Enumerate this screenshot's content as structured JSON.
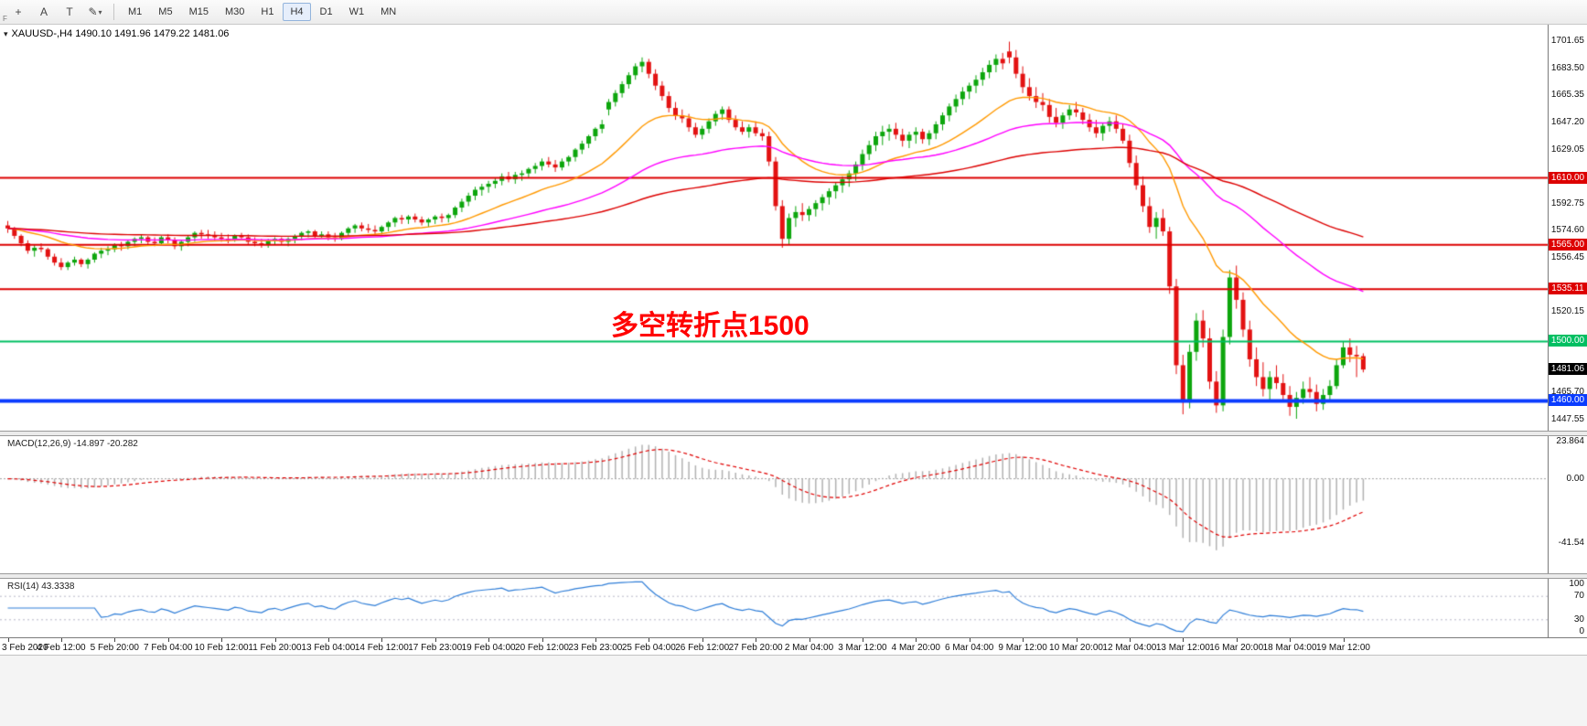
{
  "toolbar": {
    "side_label": "F",
    "tools": [
      {
        "name": "crosshair-icon",
        "glyph": "+"
      },
      {
        "name": "text-tool-icon",
        "glyph": "A"
      },
      {
        "name": "text-label-tool-icon",
        "glyph": "T"
      },
      {
        "name": "draw-tool-icon",
        "glyph": "✎",
        "caret": true
      }
    ],
    "timeframes": [
      "M1",
      "M5",
      "M15",
      "M30",
      "H1",
      "H4",
      "D1",
      "W1",
      "MN"
    ],
    "active_timeframe": "H4"
  },
  "chart": {
    "title_marker": "▾",
    "title": "XAUUSD-,H4  1490.10 1491.96 1479.22 1481.06",
    "symbol": "XAUUSD-",
    "period": "H4",
    "ohlc_display": {
      "open": "1490.10",
      "high": "1491.96",
      "low": "1479.22",
      "close": "1481.06"
    },
    "annotation": {
      "text": "多空转折点1500",
      "color": "#ff0000"
    },
    "price_axis_labels": [
      "1701.65",
      "1683.50",
      "1665.35",
      "1647.20",
      "1629.05",
      "1592.75",
      "1574.60",
      "1556.45",
      "1520.15",
      "1465.70",
      "1447.55"
    ],
    "hlines": [
      {
        "price": 1610.0,
        "label": "1610.00",
        "color": "#dd0000",
        "width": 2
      },
      {
        "price": 1565.0,
        "label": "1565.00",
        "color": "#dd0000",
        "width": 2
      },
      {
        "price": 1535.11,
        "label": "1535.11",
        "color": "#dd0000",
        "width": 2
      },
      {
        "price": 1500.0,
        "label": "1500.00",
        "color": "#00bf62",
        "width": 2
      },
      {
        "price": 1460.0,
        "label": "1460.00",
        "color": "#0a3cff",
        "width": 4
      }
    ],
    "current_price": {
      "label": "1481.06",
      "price": 1481.06,
      "bg": "#000000",
      "fg": "#ffffff"
    },
    "colors": {
      "bull": "#0da60d",
      "bear": "#e31212",
      "ma_fast": "#ff9900",
      "ma_mid": "#ff00ff",
      "ma_slow": "#dd0000"
    }
  },
  "chart_data": {
    "type": "candlestick",
    "symbol": "XAUUSD-",
    "timeframe": "H4",
    "price_range": {
      "max": 1713,
      "min": 1440
    },
    "label_every_n_bars": 8,
    "time_labels": [
      "3 Feb 2020",
      "4 Feb 12:00",
      "5 Feb 20:00",
      "7 Feb 04:00",
      "10 Feb 12:00",
      "11 Feb 20:00",
      "13 Feb 04:00",
      "14 Feb 12:00",
      "17 Feb 23:00",
      "19 Feb 04:00",
      "20 Feb 12:00",
      "23 Feb 23:00",
      "25 Feb 04:00",
      "26 Feb 12:00",
      "27 Feb 20:00",
      "2 Mar 04:00",
      "3 Mar 12:00",
      "4 Mar 20:00",
      "6 Mar 04:00",
      "9 Mar 12:00",
      "10 Mar 20:00",
      "12 Mar 04:00",
      "13 Mar 12:00",
      "16 Mar 20:00",
      "18 Mar 04:00",
      "19 Mar 12:00"
    ],
    "moving_averages": [
      {
        "period": 21,
        "color": "#ff9900"
      },
      {
        "period": 55,
        "color": "#ff00ff"
      },
      {
        "period": 120,
        "color": "#dd0000"
      }
    ],
    "ohlc": [
      [
        1578,
        1581,
        1573,
        1576
      ],
      [
        1576,
        1577,
        1569,
        1571
      ],
      [
        1571,
        1572,
        1564,
        1566
      ],
      [
        1566,
        1568,
        1559,
        1561
      ],
      [
        1561,
        1565,
        1557,
        1563
      ],
      [
        1563,
        1566,
        1560,
        1562
      ],
      [
        1562,
        1563,
        1555,
        1557
      ],
      [
        1557,
        1559,
        1551,
        1553
      ],
      [
        1553,
        1556,
        1548,
        1550
      ],
      [
        1550,
        1554,
        1548,
        1553
      ],
      [
        1553,
        1557,
        1551,
        1555
      ],
      [
        1555,
        1556,
        1550,
        1552
      ],
      [
        1552,
        1556,
        1549,
        1555
      ],
      [
        1555,
        1560,
        1553,
        1559
      ],
      [
        1559,
        1563,
        1556,
        1561
      ],
      [
        1561,
        1564,
        1558,
        1562
      ],
      [
        1562,
        1566,
        1560,
        1565
      ],
      [
        1565,
        1567,
        1561,
        1564
      ],
      [
        1564,
        1568,
        1562,
        1567
      ],
      [
        1567,
        1570,
        1564,
        1569
      ],
      [
        1569,
        1572,
        1566,
        1570
      ],
      [
        1570,
        1571,
        1565,
        1567
      ],
      [
        1567,
        1570,
        1564,
        1566
      ],
      [
        1566,
        1571,
        1565,
        1570
      ],
      [
        1570,
        1572,
        1566,
        1568
      ],
      [
        1568,
        1570,
        1562,
        1564
      ],
      [
        1564,
        1568,
        1561,
        1567
      ],
      [
        1567,
        1571,
        1564,
        1570
      ],
      [
        1570,
        1574,
        1567,
        1573
      ],
      [
        1573,
        1575,
        1569,
        1572
      ],
      [
        1572,
        1575,
        1569,
        1571
      ],
      [
        1571,
        1574,
        1568,
        1570
      ],
      [
        1570,
        1573,
        1567,
        1569
      ],
      [
        1569,
        1572,
        1566,
        1568
      ],
      [
        1568,
        1572,
        1567,
        1571
      ],
      [
        1571,
        1573,
        1568,
        1570
      ],
      [
        1570,
        1572,
        1565,
        1567
      ],
      [
        1567,
        1570,
        1564,
        1566
      ],
      [
        1566,
        1569,
        1563,
        1565
      ],
      [
        1565,
        1569,
        1563,
        1568
      ],
      [
        1568,
        1570,
        1565,
        1569
      ],
      [
        1569,
        1570,
        1565,
        1567
      ],
      [
        1567,
        1570,
        1564,
        1569
      ],
      [
        1569,
        1572,
        1566,
        1571
      ],
      [
        1571,
        1574,
        1568,
        1573
      ],
      [
        1573,
        1575,
        1570,
        1574
      ],
      [
        1574,
        1575,
        1569,
        1571
      ],
      [
        1571,
        1574,
        1569,
        1572
      ],
      [
        1572,
        1574,
        1568,
        1570
      ],
      [
        1570,
        1573,
        1567,
        1569
      ],
      [
        1569,
        1574,
        1568,
        1573
      ],
      [
        1573,
        1577,
        1571,
        1576
      ],
      [
        1576,
        1579,
        1573,
        1578
      ],
      [
        1578,
        1580,
        1574,
        1576
      ],
      [
        1576,
        1579,
        1573,
        1575
      ],
      [
        1575,
        1578,
        1572,
        1574
      ],
      [
        1574,
        1578,
        1572,
        1577
      ],
      [
        1577,
        1581,
        1574,
        1580
      ],
      [
        1580,
        1584,
        1577,
        1583
      ],
      [
        1583,
        1585,
        1579,
        1582
      ],
      [
        1582,
        1585,
        1579,
        1584
      ],
      [
        1584,
        1586,
        1580,
        1582
      ],
      [
        1582,
        1584,
        1578,
        1580
      ],
      [
        1580,
        1583,
        1577,
        1582
      ],
      [
        1582,
        1585,
        1579,
        1584
      ],
      [
        1584,
        1586,
        1580,
        1583
      ],
      [
        1583,
        1586,
        1580,
        1585
      ],
      [
        1585,
        1591,
        1583,
        1590
      ],
      [
        1590,
        1596,
        1587,
        1594
      ],
      [
        1594,
        1600,
        1591,
        1598
      ],
      [
        1598,
        1604,
        1595,
        1602
      ],
      [
        1602,
        1606,
        1598,
        1604
      ],
      [
        1604,
        1608,
        1600,
        1606
      ],
      [
        1606,
        1610,
        1603,
        1608
      ],
      [
        1608,
        1613,
        1605,
        1611
      ],
      [
        1611,
        1614,
        1607,
        1609
      ],
      [
        1609,
        1614,
        1606,
        1612
      ],
      [
        1612,
        1615,
        1608,
        1613
      ],
      [
        1613,
        1617,
        1610,
        1616
      ],
      [
        1616,
        1620,
        1613,
        1618
      ],
      [
        1618,
        1623,
        1615,
        1621
      ],
      [
        1621,
        1624,
        1617,
        1619
      ],
      [
        1619,
        1622,
        1614,
        1617
      ],
      [
        1617,
        1623,
        1615,
        1621
      ],
      [
        1621,
        1625,
        1618,
        1624
      ],
      [
        1624,
        1630,
        1621,
        1629
      ],
      [
        1629,
        1635,
        1626,
        1633
      ],
      [
        1633,
        1639,
        1630,
        1638
      ],
      [
        1638,
        1644,
        1635,
        1643
      ],
      [
        1643,
        1649,
        1640,
        1646
      ],
      [
        1656,
        1663,
        1652,
        1661
      ],
      [
        1661,
        1669,
        1658,
        1667
      ],
      [
        1667,
        1675,
        1664,
        1673
      ],
      [
        1673,
        1681,
        1670,
        1679
      ],
      [
        1679,
        1687,
        1676,
        1685
      ],
      [
        1685,
        1691,
        1681,
        1688
      ],
      [
        1688,
        1690,
        1677,
        1680
      ],
      [
        1680,
        1683,
        1669,
        1672
      ],
      [
        1672,
        1675,
        1662,
        1665
      ],
      [
        1665,
        1668,
        1654,
        1657
      ],
      [
        1657,
        1661,
        1649,
        1652
      ],
      [
        1652,
        1656,
        1647,
        1650
      ],
      [
        1650,
        1653,
        1641,
        1644
      ],
      [
        1644,
        1647,
        1637,
        1639
      ],
      [
        1639,
        1645,
        1636,
        1643
      ],
      [
        1643,
        1650,
        1640,
        1648
      ],
      [
        1648,
        1655,
        1645,
        1653
      ],
      [
        1653,
        1658,
        1649,
        1656
      ],
      [
        1656,
        1658,
        1647,
        1649
      ],
      [
        1649,
        1652,
        1642,
        1644
      ],
      [
        1644,
        1648,
        1639,
        1641
      ],
      [
        1641,
        1646,
        1637,
        1644
      ],
      [
        1644,
        1648,
        1638,
        1640
      ],
      [
        1640,
        1643,
        1635,
        1638
      ],
      [
        1638,
        1641,
        1618,
        1621
      ],
      [
        1621,
        1624,
        1588,
        1591
      ],
      [
        1591,
        1595,
        1563,
        1569
      ],
      [
        1569,
        1586,
        1565,
        1583
      ],
      [
        1583,
        1591,
        1577,
        1587
      ],
      [
        1587,
        1593,
        1581,
        1585
      ],
      [
        1585,
        1591,
        1581,
        1589
      ],
      [
        1589,
        1595,
        1584,
        1593
      ],
      [
        1593,
        1599,
        1588,
        1597
      ],
      [
        1597,
        1603,
        1592,
        1601
      ],
      [
        1601,
        1607,
        1596,
        1605
      ],
      [
        1605,
        1611,
        1600,
        1609
      ],
      [
        1609,
        1615,
        1604,
        1613
      ],
      [
        1613,
        1621,
        1608,
        1619
      ],
      [
        1619,
        1629,
        1615,
        1626
      ],
      [
        1626,
        1635,
        1622,
        1632
      ],
      [
        1632,
        1641,
        1628,
        1638
      ],
      [
        1638,
        1645,
        1632,
        1641
      ],
      [
        1641,
        1646,
        1635,
        1643
      ],
      [
        1643,
        1647,
        1636,
        1639
      ],
      [
        1639,
        1643,
        1631,
        1635
      ],
      [
        1635,
        1641,
        1630,
        1639
      ],
      [
        1639,
        1644,
        1633,
        1641
      ],
      [
        1641,
        1643,
        1633,
        1636
      ],
      [
        1636,
        1642,
        1632,
        1640
      ],
      [
        1640,
        1648,
        1636,
        1646
      ],
      [
        1646,
        1654,
        1642,
        1652
      ],
      [
        1652,
        1660,
        1648,
        1658
      ],
      [
        1658,
        1666,
        1654,
        1663
      ],
      [
        1663,
        1671,
        1659,
        1668
      ],
      [
        1668,
        1674,
        1663,
        1672
      ],
      [
        1672,
        1679,
        1667,
        1676
      ],
      [
        1676,
        1684,
        1672,
        1681
      ],
      [
        1681,
        1689,
        1677,
        1686
      ],
      [
        1686,
        1693,
        1681,
        1690
      ],
      [
        1690,
        1694,
        1683,
        1687
      ],
      [
        1695,
        1701.6,
        1687,
        1691
      ],
      [
        1691,
        1696,
        1677,
        1680
      ],
      [
        1680,
        1685,
        1667,
        1671
      ],
      [
        1671,
        1677,
        1662,
        1665
      ],
      [
        1665,
        1671,
        1657,
        1661
      ],
      [
        1661,
        1667,
        1655,
        1659
      ],
      [
        1659,
        1663,
        1647,
        1651
      ],
      [
        1651,
        1657,
        1644,
        1647
      ],
      [
        1647,
        1654,
        1643,
        1652
      ],
      [
        1652,
        1659,
        1649,
        1656
      ],
      [
        1656,
        1661,
        1651,
        1654
      ],
      [
        1654,
        1657,
        1646,
        1649
      ],
      [
        1649,
        1653,
        1641,
        1644
      ],
      [
        1644,
        1649,
        1637,
        1640
      ],
      [
        1640,
        1647,
        1635,
        1645
      ],
      [
        1645,
        1651,
        1641,
        1648
      ],
      [
        1648,
        1652,
        1640,
        1643
      ],
      [
        1643,
        1646,
        1633,
        1635
      ],
      [
        1635,
        1639,
        1617,
        1620
      ],
      [
        1620,
        1625,
        1602,
        1605
      ],
      [
        1605,
        1611,
        1587,
        1591
      ],
      [
        1591,
        1597,
        1573,
        1577
      ],
      [
        1577,
        1587,
        1569,
        1583
      ],
      [
        1583,
        1589,
        1571,
        1574
      ],
      [
        1574,
        1577,
        1532,
        1537
      ],
      [
        1537,
        1542,
        1478,
        1484
      ],
      [
        1484,
        1491,
        1451,
        1459
      ],
      [
        1459,
        1498,
        1455,
        1493
      ],
      [
        1493,
        1519,
        1487,
        1514
      ],
      [
        1514,
        1521,
        1496,
        1502
      ],
      [
        1502,
        1509,
        1468,
        1473
      ],
      [
        1473,
        1480,
        1452,
        1457
      ],
      [
        1457,
        1508,
        1453,
        1503
      ],
      [
        1503,
        1548,
        1498,
        1543
      ],
      [
        1543,
        1551,
        1522,
        1528
      ],
      [
        1528,
        1533,
        1503,
        1508
      ],
      [
        1508,
        1514,
        1483,
        1488
      ],
      [
        1488,
        1496,
        1470,
        1476
      ],
      [
        1476,
        1486,
        1463,
        1468
      ],
      [
        1468,
        1480,
        1460,
        1476
      ],
      [
        1476,
        1484,
        1468,
        1472
      ],
      [
        1472,
        1478,
        1460,
        1464
      ],
      [
        1464,
        1470,
        1450,
        1456
      ],
      [
        1456,
        1466,
        1448,
        1462
      ],
      [
        1462,
        1473,
        1458,
        1468
      ],
      [
        1468,
        1476,
        1462,
        1466
      ],
      [
        1466,
        1471,
        1453,
        1458
      ],
      [
        1458,
        1468,
        1454,
        1464
      ],
      [
        1464,
        1474,
        1460,
        1470
      ],
      [
        1470,
        1488,
        1468,
        1484
      ],
      [
        1484,
        1500,
        1482,
        1496
      ],
      [
        1496,
        1502,
        1486,
        1491
      ],
      [
        1491,
        1497,
        1476,
        1490
      ],
      [
        1490.1,
        1492,
        1479.2,
        1481.1
      ]
    ]
  },
  "macd": {
    "label": "MACD(12,26,9) -14.897 -20.282",
    "fast": 12,
    "slow": 26,
    "signal": 9,
    "value": "-14.897",
    "signal_value": "-20.282",
    "axis_labels": [
      "23.864",
      "0.00",
      "-41.54"
    ],
    "range": {
      "max": 27.5,
      "min": -61
    }
  },
  "rsi": {
    "label": "RSI(14) 43.3338",
    "period": 14,
    "value": "43.3338",
    "axis_labels": [
      {
        "text": "100",
        "v": 100
      },
      {
        "text": "70",
        "v": 70
      },
      {
        "text": "30",
        "v": 30
      },
      {
        "text": "0",
        "v": 0
      }
    ],
    "levels": [
      70,
      30
    ]
  }
}
